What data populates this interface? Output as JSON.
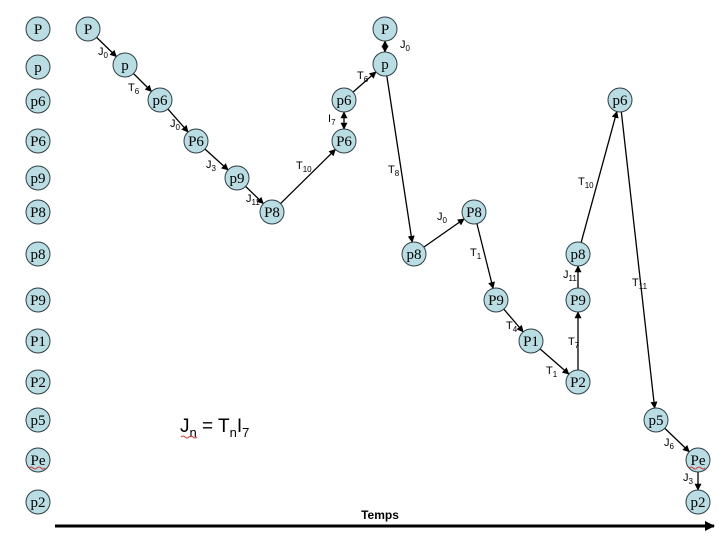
{
  "colors": {
    "node_fill": "#b9dde3",
    "node_stroke": "#2e3f45",
    "arrow": "#000000",
    "text": "#000000",
    "underline": "#d23a3a"
  },
  "axis": {
    "label": "Temps"
  },
  "legend": {
    "J": "J",
    "n1": "n",
    "eq": " = T",
    "n2": "n",
    "I": "I",
    "seven": "7"
  },
  "levels": [
    {
      "id": "P",
      "label": "P"
    },
    {
      "id": "p",
      "label": "p"
    },
    {
      "id": "p6",
      "label": "p6"
    },
    {
      "id": "P6",
      "label": "P6"
    },
    {
      "id": "p9",
      "label": "p9"
    },
    {
      "id": "P8",
      "label": "P8"
    },
    {
      "id": "p8",
      "label": "p8"
    },
    {
      "id": "P9",
      "label": "P9"
    },
    {
      "id": "P1",
      "label": "P1"
    },
    {
      "id": "P2",
      "label": "P2"
    },
    {
      "id": "p5",
      "label": "p5"
    },
    {
      "id": "Pe",
      "label": "Pe"
    },
    {
      "id": "p2",
      "label": "p2"
    }
  ],
  "nodes": [
    {
      "id": "n1",
      "label": "P"
    },
    {
      "id": "n2",
      "label": "p"
    },
    {
      "id": "n3",
      "label": "p6"
    },
    {
      "id": "n4",
      "label": "P6"
    },
    {
      "id": "n5",
      "label": "p9"
    },
    {
      "id": "n6",
      "label": "P8"
    },
    {
      "id": "n7",
      "label": "P6"
    },
    {
      "id": "n8",
      "label": "p6"
    },
    {
      "id": "n9",
      "label": "p"
    },
    {
      "id": "n10",
      "label": "P"
    },
    {
      "id": "n11",
      "label": "p8"
    },
    {
      "id": "n12",
      "label": "P8"
    },
    {
      "id": "n13",
      "label": "P9"
    },
    {
      "id": "n14",
      "label": "P1"
    },
    {
      "id": "n15",
      "label": "P2"
    },
    {
      "id": "n16",
      "label": "P9"
    },
    {
      "id": "n17",
      "label": "p8"
    },
    {
      "id": "n18",
      "label": "p6"
    },
    {
      "id": "n19",
      "label": "p5"
    },
    {
      "id": "n20",
      "label": "Pe"
    },
    {
      "id": "n21",
      "label": "p2"
    }
  ],
  "edges": [
    {
      "from": "n1",
      "to": "n2",
      "main": "J",
      "sub": "0"
    },
    {
      "from": "n2",
      "to": "n3",
      "main": "T",
      "sub": "6"
    },
    {
      "from": "n3",
      "to": "n4",
      "main": "J",
      "sub": "0"
    },
    {
      "from": "n4",
      "to": "n5",
      "main": "J",
      "sub": "3"
    },
    {
      "from": "n5",
      "to": "n6",
      "main": "J",
      "sub": "11"
    },
    {
      "from": "n6",
      "to": "n7",
      "main": "T",
      "sub": "10"
    },
    {
      "from": "n7",
      "to": "n8",
      "main": "I",
      "sub": "7",
      "double": true
    },
    {
      "from": "n8",
      "to": "n9",
      "main": "T",
      "sub": "6"
    },
    {
      "from": "n9",
      "to": "n10",
      "main": "J",
      "sub": "0",
      "double": true
    },
    {
      "from": "n9",
      "to": "n11",
      "main": "T",
      "sub": "8"
    },
    {
      "from": "n11",
      "to": "n12",
      "main": "J",
      "sub": "0"
    },
    {
      "from": "n12",
      "to": "n13",
      "main": "T",
      "sub": "1"
    },
    {
      "from": "n13",
      "to": "n14",
      "main": "T",
      "sub": "4"
    },
    {
      "from": "n14",
      "to": "n15",
      "main": "T",
      "sub": "1"
    },
    {
      "from": "n15",
      "to": "n16",
      "main": "T",
      "sub": "7"
    },
    {
      "from": "n16",
      "to": "n17",
      "main": "J",
      "sub": "11"
    },
    {
      "from": "n17",
      "to": "n18",
      "main": "T",
      "sub": "10"
    },
    {
      "from": "n18",
      "to": "n19",
      "main": "T",
      "sub": "11"
    },
    {
      "from": "n19",
      "to": "n20",
      "main": "J",
      "sub": "6"
    },
    {
      "from": "n20",
      "to": "n21",
      "main": "J",
      "sub": "3"
    }
  ]
}
